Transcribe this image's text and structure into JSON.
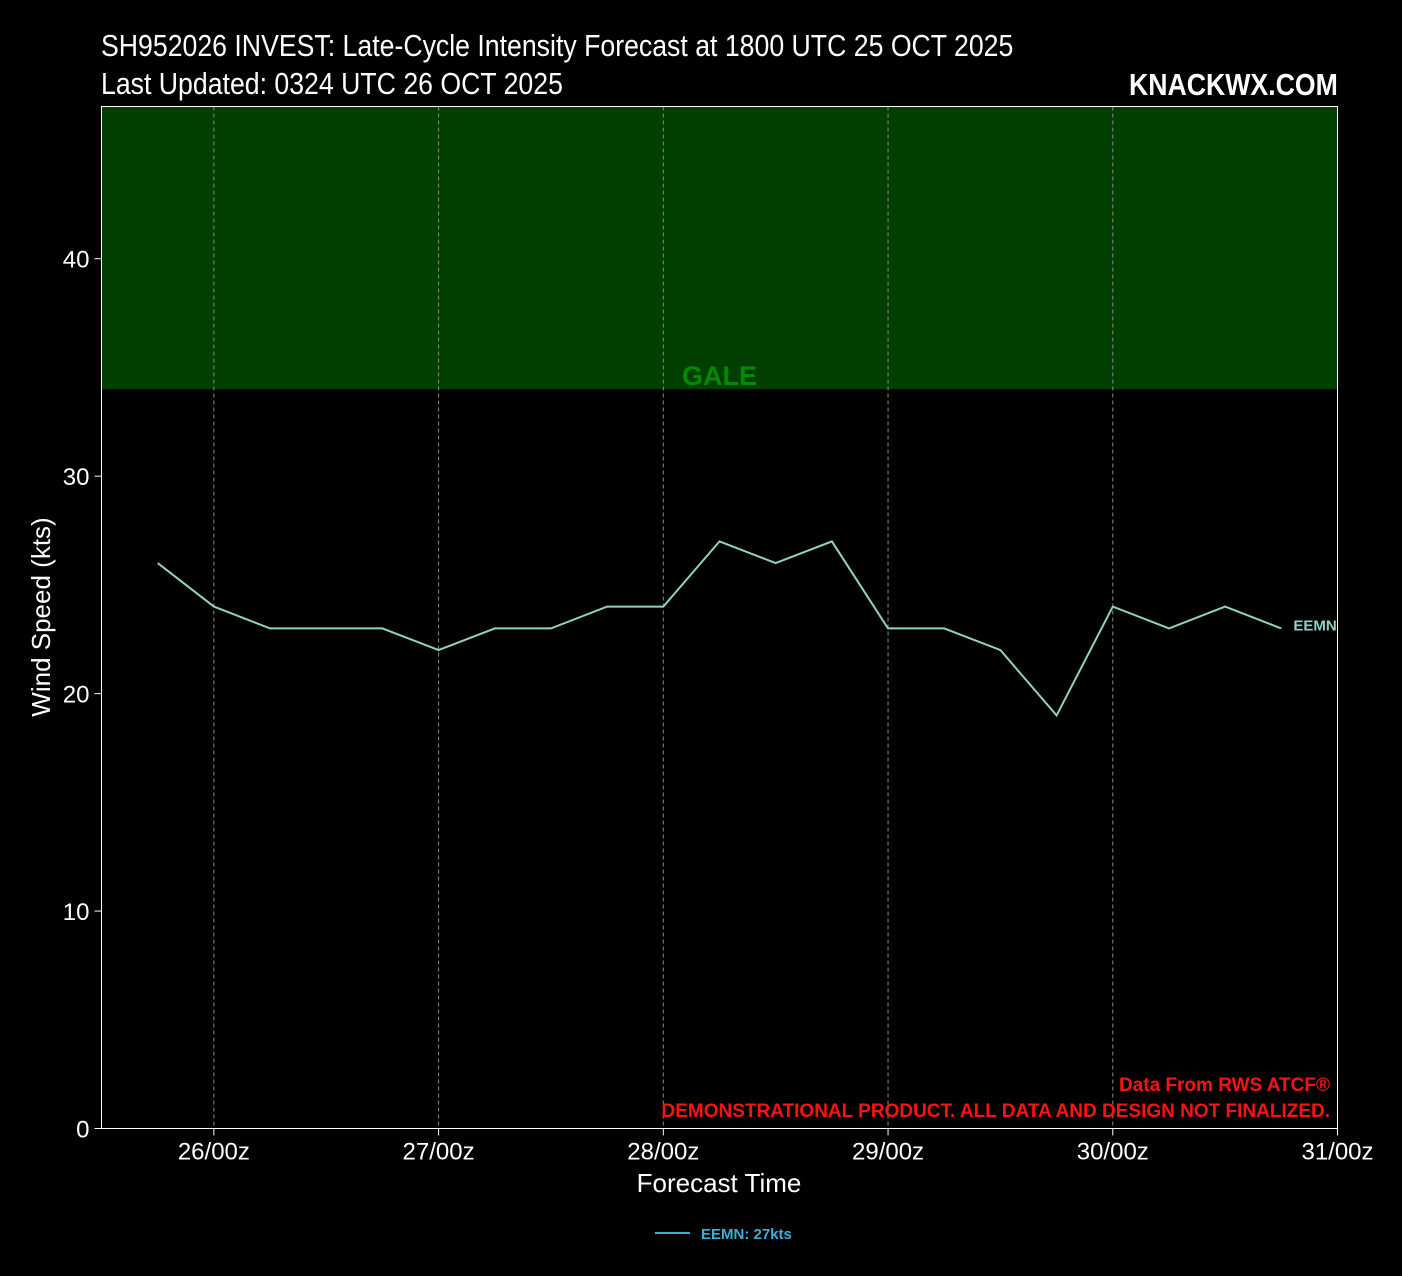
{
  "header": {
    "title_line1": "SH952026 INVEST: Late-Cycle Intensity Forecast at 1800 UTC 25 OCT 2025",
    "title_line2": "Last Updated: 0324 UTC 26 OCT 2025",
    "brand": "KNACKWX.COM"
  },
  "footnotes": {
    "source": "Data From RWS ATCF®",
    "disclaimer": "DEMONSTRATIONAL PRODUCT. ALL DATA AND DESIGN NOT FINALIZED."
  },
  "colors": {
    "background": "#000000",
    "gale_band": "#003f00",
    "gale_label": "#008a00",
    "series_line": "#8fd3c8",
    "legend_text": "#3ab0d8",
    "note_text": "#ff1111"
  },
  "chart_data": {
    "type": "line",
    "title": "SH952026 INVEST: Late-Cycle Intensity Forecast at 1800 UTC 25 OCT 2025",
    "xlabel": "Forecast Time",
    "ylabel": "Wind Speed (kts)",
    "ylim": [
      0,
      47
    ],
    "yticks": [
      0,
      10,
      20,
      30,
      40
    ],
    "xlim": [
      "2025-10-25T12:00Z",
      "2025-10-31T00:00Z"
    ],
    "xticks": [
      "26/00z",
      "27/00z",
      "28/00z",
      "29/00z",
      "30/00z",
      "31/00z"
    ],
    "grid": "vertical dashed at x ticks",
    "bands": [
      {
        "label": "GALE",
        "from": 34,
        "to": 47
      }
    ],
    "series": [
      {
        "name": "EEMN",
        "end_label": "EEMN",
        "legend_label": "EEMN: 27kts",
        "x": [
          "2025-10-25T18:00Z",
          "2025-10-26T00:00Z",
          "2025-10-26T06:00Z",
          "2025-10-26T12:00Z",
          "2025-10-26T18:00Z",
          "2025-10-27T00:00Z",
          "2025-10-27T06:00Z",
          "2025-10-27T12:00Z",
          "2025-10-27T18:00Z",
          "2025-10-28T00:00Z",
          "2025-10-28T06:00Z",
          "2025-10-28T12:00Z",
          "2025-10-28T18:00Z",
          "2025-10-29T00:00Z",
          "2025-10-29T06:00Z",
          "2025-10-29T12:00Z",
          "2025-10-29T18:00Z",
          "2025-10-30T00:00Z",
          "2025-10-30T06:00Z",
          "2025-10-30T12:00Z",
          "2025-10-30T18:00Z"
        ],
        "values": [
          26,
          24,
          23,
          23,
          23,
          22,
          23,
          23,
          24,
          24,
          27,
          26,
          27,
          23,
          23,
          22,
          19,
          24,
          23,
          24,
          23
        ]
      }
    ]
  }
}
